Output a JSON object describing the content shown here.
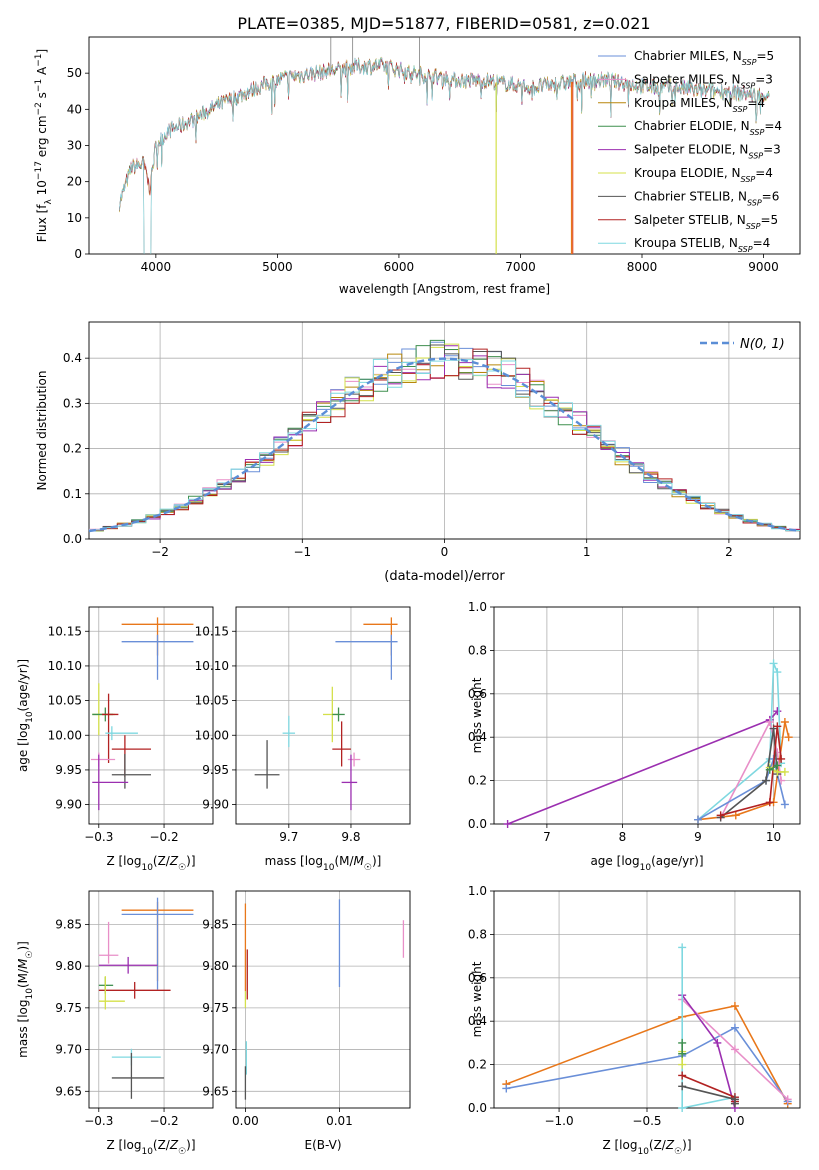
{
  "figure_title": "PLATE=0385, MJD=51877, FIBERID=0581, z=0.021",
  "colors": {
    "c0": "#6a8fd8",
    "c1": "#e88fc8",
    "c2": "#b8860b",
    "c3": "#3f8f4f",
    "c4": "#9b2fb0",
    "c5": "#d4e04a",
    "c6": "#555555",
    "c7": "#b22222",
    "c8": "#7fd8e0",
    "orange": "#e8771a",
    "model_red": "#e0502a",
    "gauss": "#5b8ed6"
  },
  "chart_data": [
    {
      "type": "line",
      "id": "spectrum",
      "title": "PLATE=0385, MJD=51877, FIBERID=0581, z=0.021",
      "xlabel": "wavelength [Angstrom, rest frame]",
      "ylabel": "Flux [f_λ 10^-17 erg cm^-2 s^-1 A^-1]",
      "xlim": [
        3450,
        9300
      ],
      "ylim": [
        0,
        60
      ],
      "xticks": [
        4000,
        5000,
        6000,
        7000,
        8000,
        9000
      ],
      "yticks": [
        0,
        10,
        20,
        30,
        40,
        50
      ],
      "grid": false,
      "legend_position": "top-right",
      "legend": [
        {
          "label": "Chabrier MILES, N",
          "sub": "SSP",
          "suffix": "=5",
          "color_key": "c0"
        },
        {
          "label": "Salpeter MILES, N",
          "sub": "SSP",
          "suffix": "=3",
          "color_key": "c1"
        },
        {
          "label": "Kroupa MILES, N",
          "sub": "SSP",
          "suffix": "=4",
          "color_key": "c2"
        },
        {
          "label": "Chabrier ELODIE, N",
          "sub": "SSP",
          "suffix": "=4",
          "color_key": "c3"
        },
        {
          "label": "Salpeter ELODIE, N",
          "sub": "SSP",
          "suffix": "=3",
          "color_key": "c4"
        },
        {
          "label": "Kroupa ELODIE, N",
          "sub": "SSP",
          "suffix": "=4",
          "color_key": "c5"
        },
        {
          "label": "Chabrier STELIB, N",
          "sub": "SSP",
          "suffix": "=6",
          "color_key": "c6"
        },
        {
          "label": "Salpeter STELIB, N",
          "sub": "SSP",
          "suffix": "=5",
          "color_key": "c7"
        },
        {
          "label": "Kroupa STELIB, N",
          "sub": "SSP",
          "suffix": "=4",
          "color_key": "c8"
        }
      ],
      "continuum_anchors": [
        [
          3700,
          14
        ],
        [
          3800,
          24
        ],
        [
          3900,
          25
        ],
        [
          3950,
          18
        ],
        [
          4000,
          30
        ],
        [
          4100,
          34
        ],
        [
          4300,
          37
        ],
        [
          4500,
          41
        ],
        [
          4700,
          44
        ],
        [
          4900,
          47
        ],
        [
          5100,
          49
        ],
        [
          5300,
          50
        ],
        [
          5500,
          51
        ],
        [
          5700,
          52
        ],
        [
          5900,
          52
        ],
        [
          6100,
          50
        ],
        [
          6300,
          49
        ],
        [
          6500,
          48
        ],
        [
          6700,
          48
        ],
        [
          6900,
          47
        ],
        [
          7100,
          46
        ],
        [
          7300,
          47
        ],
        [
          7500,
          48
        ],
        [
          7700,
          48
        ],
        [
          7900,
          47
        ],
        [
          8100,
          46
        ],
        [
          8300,
          46
        ],
        [
          8500,
          45
        ],
        [
          8700,
          45
        ],
        [
          8900,
          44
        ],
        [
          9050,
          44
        ]
      ],
      "model_dropouts": [
        {
          "x": 6800,
          "color_key": "c5"
        },
        {
          "x": 7430,
          "color_key": "model_red"
        },
        {
          "x": 7420,
          "color_key": "orange"
        }
      ]
    },
    {
      "type": "histogram",
      "id": "residuals",
      "xlabel": "(data-model)/error",
      "ylabel": "Normed distribution",
      "xlim": [
        -2.5,
        2.5
      ],
      "ylim": [
        0,
        0.48
      ],
      "xticks": [
        -2,
        -1,
        0,
        1,
        2
      ],
      "yticks": [
        0.0,
        0.1,
        0.2,
        0.3,
        0.4
      ],
      "grid": true,
      "legend_position": "top-right",
      "reference_curve": {
        "label": "N(0, 1)",
        "mean": 0,
        "sigma": 1,
        "style": "dashed"
      },
      "bin_width": 0.1
    },
    {
      "type": "scatter",
      "id": "age_vs_Z",
      "xlabel": "Z [log10(Z/Z☉)]",
      "ylabel": "age  [log10(age/yr)]",
      "xlim": [
        -0.315,
        -0.125
      ],
      "ylim": [
        9.872,
        10.185
      ],
      "xticks": [
        -0.3,
        -0.2
      ],
      "yticks": [
        9.9,
        9.95,
        10.0,
        10.05,
        10.1,
        10.15
      ],
      "grid": true,
      "points": [
        {
          "color_key": "orange",
          "x": -0.21,
          "xerr": [
            0.055,
            0.055
          ],
          "y": 10.16,
          "yerr": [
            0.045,
            0.01
          ]
        },
        {
          "color_key": "c0",
          "x": -0.21,
          "xerr": [
            0.055,
            0.055
          ],
          "y": 10.135,
          "yerr": [
            0.055,
            0.01
          ]
        },
        {
          "color_key": "c5",
          "x": -0.3,
          "xerr": [
            0.01,
            0.025
          ],
          "y": 10.03,
          "yerr": [
            0.03,
            0.045
          ]
        },
        {
          "color_key": "c3",
          "x": -0.29,
          "xerr": [
            0.02,
            0.012
          ],
          "y": 10.03,
          "yerr": [
            0.01,
            0.01
          ]
        },
        {
          "color_key": "c7",
          "x": -0.285,
          "xerr": [
            0.01,
            0.015
          ],
          "y": 10.03,
          "yerr": [
            0.07,
            0.03
          ]
        },
        {
          "color_key": "c8",
          "x": -0.28,
          "xerr": [
            0.01,
            0.04
          ],
          "y": 10.003,
          "yerr": [
            0.01,
            0.01
          ]
        },
        {
          "color_key": "c1",
          "x": -0.3,
          "xerr": [
            0.012,
            0.025
          ],
          "y": 9.965,
          "yerr": [
            0.01,
            0.01
          ]
        },
        {
          "color_key": "c7",
          "x": -0.26,
          "xerr": [
            0.02,
            0.04
          ],
          "y": 9.98,
          "yerr": [
            0.04,
            0.02
          ]
        },
        {
          "color_key": "c6",
          "x": -0.26,
          "xerr": [
            0.02,
            0.04
          ],
          "y": 9.943,
          "yerr": [
            0.02,
            0.03
          ]
        },
        {
          "color_key": "c4",
          "x": -0.3,
          "xerr": [
            0.01,
            0.045
          ],
          "y": 9.932,
          "yerr": [
            0.04,
            0.04
          ]
        }
      ]
    },
    {
      "type": "scatter",
      "id": "age_vs_mass",
      "xlabel": "mass [log10(M/M☉)]",
      "ylabel": "",
      "xlim": [
        9.615,
        9.895
      ],
      "ylim": [
        9.872,
        10.185
      ],
      "xticks": [
        9.7,
        9.8
      ],
      "yticks": [
        9.9,
        9.95,
        10.0,
        10.05,
        10.1,
        10.15
      ],
      "grid": true,
      "points": [
        {
          "color_key": "orange",
          "x": 9.865,
          "xerr": [
            0.045,
            0.01
          ],
          "y": 10.16,
          "yerr": [
            0.045,
            0.01
          ]
        },
        {
          "color_key": "c0",
          "x": 9.865,
          "xerr": [
            0.09,
            0.01
          ],
          "y": 10.135,
          "yerr": [
            0.055,
            0.01
          ]
        },
        {
          "color_key": "c5",
          "x": 9.77,
          "xerr": [
            0.015,
            0.01
          ],
          "y": 10.03,
          "yerr": [
            0.04,
            0.04
          ]
        },
        {
          "color_key": "c3",
          "x": 9.78,
          "xerr": [
            0.01,
            0.01
          ],
          "y": 10.03,
          "yerr": [
            0.01,
            0.01
          ]
        },
        {
          "color_key": "c8",
          "x": 9.7,
          "xerr": [
            0.01,
            0.01
          ],
          "y": 10.003,
          "yerr": [
            0.02,
            0.025
          ]
        },
        {
          "color_key": "c7",
          "x": 9.785,
          "xerr": [
            0.015,
            0.015
          ],
          "y": 9.98,
          "yerr": [
            0.025,
            0.04
          ]
        },
        {
          "color_key": "c1",
          "x": 9.805,
          "xerr": [
            0.01,
            0.01
          ],
          "y": 9.965,
          "yerr": [
            0.01,
            0.01
          ]
        },
        {
          "color_key": "c6",
          "x": 9.665,
          "xerr": [
            0.02,
            0.02
          ],
          "y": 9.943,
          "yerr": [
            0.02,
            0.05
          ]
        },
        {
          "color_key": "c4",
          "x": 9.8,
          "xerr": [
            0.015,
            0.01
          ],
          "y": 9.932,
          "yerr": [
            0.04,
            0.04
          ]
        }
      ]
    },
    {
      "type": "line",
      "id": "mass_weight_vs_age",
      "xlabel": "age  [log10(age/yr)]",
      "ylabel": "mass weight",
      "xlim": [
        6.3,
        10.35
      ],
      "ylim": [
        0,
        1.0
      ],
      "xticks": [
        7,
        8,
        9,
        10
      ],
      "yticks": [
        0.0,
        0.2,
        0.4,
        0.6,
        0.8,
        1.0
      ],
      "grid": true,
      "series": [
        {
          "color_key": "c4",
          "x": [
            6.48,
            9.95,
            10.05
          ],
          "y": [
            0.0,
            0.48,
            0.52
          ]
        },
        {
          "color_key": "c8",
          "x": [
            9.0,
            9.95,
            10.0,
            10.05,
            10.1
          ],
          "y": [
            0.02,
            0.3,
            0.74,
            0.7,
            0.28
          ]
        },
        {
          "color_key": "orange",
          "x": [
            9.0,
            9.5,
            10.0,
            10.15,
            10.2
          ],
          "y": [
            0.02,
            0.04,
            0.1,
            0.47,
            0.4
          ]
        },
        {
          "color_key": "c1",
          "x": [
            9.3,
            9.95,
            10.05,
            10.1
          ],
          "y": [
            0.03,
            0.47,
            0.33,
            0.2
          ]
        },
        {
          "color_key": "c0",
          "x": [
            9.0,
            9.9,
            10.0,
            10.15
          ],
          "y": [
            0.02,
            0.2,
            0.3,
            0.09
          ]
        },
        {
          "color_key": "c6",
          "x": [
            9.3,
            9.9,
            10.0,
            10.05
          ],
          "y": [
            0.03,
            0.2,
            0.44,
            0.23
          ]
        },
        {
          "color_key": "c7",
          "x": [
            9.3,
            9.95,
            10.05,
            10.1
          ],
          "y": [
            0.04,
            0.1,
            0.45,
            0.3
          ]
        },
        {
          "color_key": "c5",
          "x": [
            9.95,
            10.05,
            10.15
          ],
          "y": [
            0.26,
            0.24,
            0.24
          ]
        },
        {
          "color_key": "c3",
          "x": [
            9.95,
            10.05
          ],
          "y": [
            0.25,
            0.27
          ]
        }
      ]
    },
    {
      "type": "scatter",
      "id": "mass_vs_Z",
      "xlabel": "Z [log10(Z/Z☉)]",
      "ylabel": "mass [log10(M/M☉)]",
      "xlim": [
        -0.315,
        -0.125
      ],
      "ylim": [
        9.63,
        9.89
      ],
      "xticks": [
        -0.3,
        -0.2
      ],
      "yticks": [
        9.65,
        9.7,
        9.75,
        9.8,
        9.85
      ],
      "grid": true,
      "points": [
        {
          "color_key": "orange",
          "x": -0.21,
          "xerr": [
            0.055,
            0.055
          ],
          "y": 9.867,
          "yerr": [
            0.085,
            0.01
          ]
        },
        {
          "color_key": "c0",
          "x": -0.21,
          "xerr": [
            0.055,
            0.055
          ],
          "y": 9.862,
          "yerr": [
            0.09,
            0.02
          ]
        },
        {
          "color_key": "c1",
          "x": -0.285,
          "xerr": [
            0.015,
            0.015
          ],
          "y": 9.813,
          "yerr": [
            0.01,
            0.04
          ]
        },
        {
          "color_key": "c4",
          "x": -0.255,
          "xerr": [
            0.045,
            0.045
          ],
          "y": 9.801,
          "yerr": [
            0.01,
            0.01
          ]
        },
        {
          "color_key": "c3",
          "x": -0.29,
          "xerr": [
            0.01,
            0.012
          ],
          "y": 9.777,
          "yerr": [
            0.01,
            0.01
          ]
        },
        {
          "color_key": "c7",
          "x": -0.245,
          "xerr": [
            0.055,
            0.055
          ],
          "y": 9.771,
          "yerr": [
            0.01,
            0.01
          ]
        },
        {
          "color_key": "c5",
          "x": -0.29,
          "xerr": [
            0.01,
            0.03
          ],
          "y": 9.758,
          "yerr": [
            0.01,
            0.03
          ]
        },
        {
          "color_key": "c8",
          "x": -0.25,
          "xerr": [
            0.03,
            0.045
          ],
          "y": 9.691,
          "yerr": [
            0.01,
            0.01
          ]
        },
        {
          "color_key": "c6",
          "x": -0.25,
          "xerr": [
            0.03,
            0.05
          ],
          "y": 9.666,
          "yerr": [
            0.025,
            0.03
          ]
        }
      ]
    },
    {
      "type": "scatter",
      "id": "mass_vs_EBV",
      "xlabel": "E(B-V)",
      "ylabel": "",
      "xlim": [
        -0.001,
        0.0175
      ],
      "ylim": [
        9.63,
        9.89
      ],
      "xticks": [
        0.0,
        0.01
      ],
      "yticks": [
        9.65,
        9.7,
        9.75,
        9.8,
        9.85
      ],
      "grid": true,
      "points": [
        {
          "color_key": "orange",
          "x": 0.0,
          "xerr": [
            0,
            0
          ],
          "y": 9.84,
          "yerr": [
            0.07,
            0.035
          ]
        },
        {
          "color_key": "c0",
          "x": 0.01,
          "xerr": [
            0,
            0
          ],
          "y": 9.83,
          "yerr": [
            0.055,
            0.05
          ]
        },
        {
          "color_key": "c1",
          "x": 0.0168,
          "xerr": [
            0,
            0
          ],
          "y": 9.83,
          "yerr": [
            0.02,
            0.025
          ]
        },
        {
          "color_key": "c7",
          "x": 0.0002,
          "xerr": [
            0,
            0
          ],
          "y": 9.79,
          "yerr": [
            0.03,
            0.03
          ]
        },
        {
          "color_key": "c5",
          "x": 0.0,
          "xerr": [
            0,
            0
          ],
          "y": 9.76,
          "yerr": [
            0.01,
            0.01
          ]
        },
        {
          "color_key": "c8",
          "x": 0.0001,
          "xerr": [
            0,
            0
          ],
          "y": 9.69,
          "yerr": [
            0.02,
            0.02
          ]
        },
        {
          "color_key": "c6",
          "x": 0.0,
          "xerr": [
            0,
            0
          ],
          "y": 9.66,
          "yerr": [
            0.02,
            0.02
          ]
        }
      ]
    },
    {
      "type": "line",
      "id": "mass_weight_vs_Z",
      "xlabel": "Z [log10(Z/Z☉)]",
      "ylabel": "mass weight",
      "xlim": [
        -1.37,
        0.37
      ],
      "ylim": [
        0,
        1.0
      ],
      "xticks": [
        -1.0,
        -0.5,
        0.0
      ],
      "yticks": [
        0.0,
        0.2,
        0.4,
        0.6,
        0.8,
        1.0
      ],
      "grid": true,
      "series": [
        {
          "color_key": "orange",
          "x": [
            -1.3,
            -0.3,
            0.0,
            0.3
          ],
          "y": [
            0.11,
            0.42,
            0.47,
            0.02
          ]
        },
        {
          "color_key": "c0",
          "x": [
            -1.3,
            -0.3,
            0.0,
            0.3
          ],
          "y": [
            0.09,
            0.24,
            0.37,
            0.03
          ]
        },
        {
          "color_key": "c1",
          "x": [
            -0.3,
            0.0,
            0.3
          ],
          "y": [
            0.5,
            0.27,
            0.04
          ]
        },
        {
          "color_key": "c4",
          "x": [
            -0.3,
            -0.1,
            0.0
          ],
          "y": [
            0.52,
            0.3,
            0.0
          ]
        },
        {
          "color_key": "c8",
          "x": [
            -0.3,
            -0.3,
            0.0,
            0.0
          ],
          "y": [
            0.74,
            0.0,
            0.05,
            0.03
          ]
        },
        {
          "color_key": "c7",
          "x": [
            -0.3,
            0.0,
            0.0
          ],
          "y": [
            0.15,
            0.05,
            0.03
          ]
        },
        {
          "color_key": "c6",
          "x": [
            -0.3,
            0.0,
            0.0
          ],
          "y": [
            0.1,
            0.04,
            0.02
          ]
        },
        {
          "color_key": "c5",
          "x": [
            -0.3,
            -0.3
          ],
          "y": [
            0.26,
            0.2
          ]
        },
        {
          "color_key": "c3",
          "x": [
            -0.3,
            -0.3
          ],
          "y": [
            0.25,
            0.3
          ]
        }
      ]
    }
  ]
}
